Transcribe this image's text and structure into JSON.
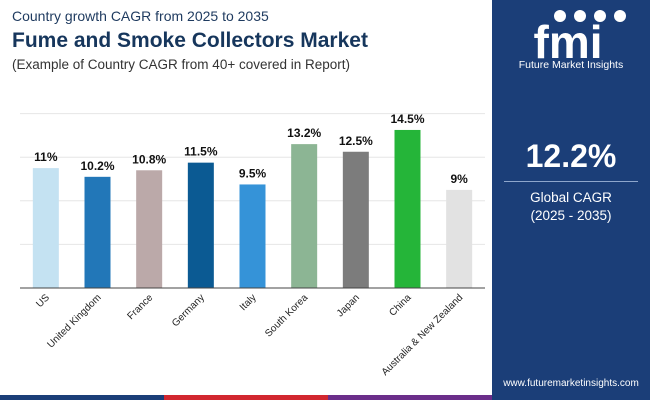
{
  "header": {
    "subtitle_top": "Country growth CAGR from 2025 to 2035",
    "title": "Fume and Smoke Collectors Market",
    "note": "(Example of Country CAGR from 40+ covered in Report)"
  },
  "chart_data": {
    "type": "bar",
    "categories": [
      "US",
      "United Kingdom",
      "France",
      "Germany",
      "Italy",
      "South Korea",
      "Japan",
      "China",
      "Australia & New Zealand"
    ],
    "values": [
      11,
      10.2,
      10.8,
      11.5,
      9.5,
      13.2,
      12.5,
      14.5,
      9
    ],
    "value_labels": [
      "11%",
      "10.2%",
      "10.8%",
      "11.5%",
      "9.5%",
      "13.2%",
      "12.5%",
      "14.5%",
      "9%"
    ],
    "colors": [
      "#c4e2f2",
      "#2277b8",
      "#bba9a9",
      "#0b5a93",
      "#3593d8",
      "#8cb594",
      "#7c7c7c",
      "#25b539",
      "#e2e2e2"
    ],
    "ylim": [
      0,
      16
    ],
    "grid": true,
    "xlabel": "",
    "ylabel": ""
  },
  "side": {
    "logo_text": "fmi",
    "brand": "Future Market Insights",
    "cagr_value": "12.2%",
    "cagr_label": "Global CAGR",
    "cagr_period": "(2025 - 2035)",
    "website": "www.futuremarketinsights.com"
  },
  "colors": {
    "panel": "#1b3e78",
    "title": "#16365c",
    "bottom_bar": [
      "#1b3e78",
      "#d2272f",
      "#6b2e8a"
    ]
  }
}
